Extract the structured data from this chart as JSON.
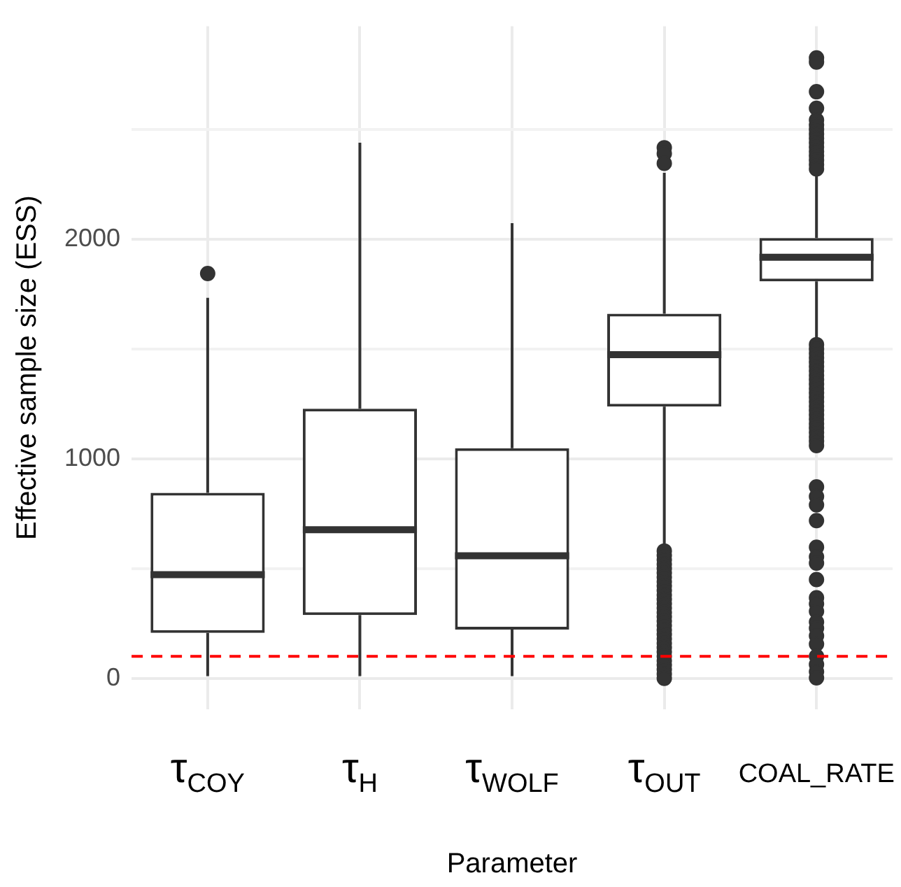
{
  "chart_data": {
    "type": "box",
    "xlabel": "Parameter",
    "ylabel": "Effective sample size (ESS)",
    "categories": [
      "τ$_{COY}$",
      "τ$_{H}$",
      "τ$_{WOLF}$",
      "τ$_{OUT}$",
      "COAL_RATE"
    ],
    "color": "#333333",
    "boxes": [
      {
        "low": 10,
        "q1": 207,
        "median": 472,
        "q3": 845,
        "high": 1733,
        "outliers": [
          1844
        ]
      },
      {
        "low": 10,
        "q1": 288,
        "median": 677,
        "q3": 1228,
        "high": 2440
      },
      {
        "low": 10,
        "q1": 222,
        "median": 558,
        "q3": 1048,
        "high": 2073
      },
      {
        "low": 596,
        "q1": 1238,
        "median": 1474,
        "q3": 1661,
        "high": 2303,
        "outliers": [
          2417,
          2390,
          2346,
          580,
          560,
          540,
          520,
          500,
          480,
          460,
          440,
          420,
          400,
          380,
          360,
          340,
          320,
          300,
          280,
          260,
          240,
          220,
          200,
          180,
          160,
          140,
          120,
          100,
          80,
          60,
          40,
          20,
          0
        ]
      },
      {
        "low": 1536,
        "q1": 1808,
        "median": 1918,
        "q3": 2006,
        "high": 2287,
        "outliers": [
          2826,
          2807,
          2672,
          2597,
          2543,
          2520,
          2500,
          2480,
          2460,
          2440,
          2420,
          2400,
          2380,
          2360,
          2340,
          2320,
          1520,
          1500,
          1480,
          1460,
          1440,
          1420,
          1400,
          1380,
          1360,
          1340,
          1320,
          1300,
          1280,
          1260,
          1240,
          1220,
          1200,
          1180,
          1160,
          1140,
          1120,
          1100,
          1080,
          1060,
          872,
          828,
          790,
          718,
          597,
          553,
          525,
          450,
          367,
          339,
          305,
          256,
          228,
          193,
          156,
          100,
          63,
          30,
          2
        ]
      }
    ],
    "ylim": [
      -140,
      2970
    ],
    "yticks": [
      0,
      {
        "value": 500,
        "label": null
      },
      1000,
      {
        "value": 1500,
        "label": null
      },
      2000,
      {
        "value": 2500,
        "label": null
      }
    ],
    "grid": true,
    "ref_lines": [
      {
        "axis": "y",
        "value": 100,
        "color": "#ff0000",
        "line_style": "dashed"
      }
    ]
  }
}
